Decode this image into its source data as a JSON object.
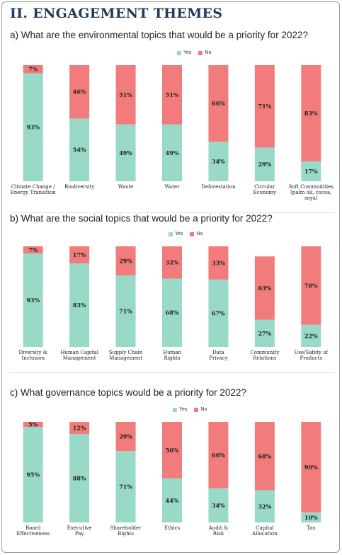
{
  "page": {
    "section_title": "II. ENGAGEMENT THEMES"
  },
  "legend": {
    "yes_label": "Yes",
    "no_label": "No"
  },
  "colors": {
    "yes": "#98d9c8",
    "no": "#f27b7b",
    "title": "#1f3b5b"
  },
  "chart_data": [
    {
      "type": "bar",
      "stacked": true,
      "title": "a) What are the environmental topics that would be a priority for 2022?",
      "categories": [
        "Climate Change /\nEnergy Transition",
        "Biodiversity",
        "Waste",
        "Water",
        "Deforestation",
        "Circular\nEconomy",
        "Soft Commodities\n(palm oil, cocoa,\nsoya)"
      ],
      "series": [
        {
          "name": "Yes",
          "values": [
            93,
            54,
            49,
            49,
            34,
            29,
            17
          ]
        },
        {
          "name": "No",
          "values": [
            7,
            46,
            51,
            51,
            66,
            71,
            83
          ]
        }
      ],
      "ylim": [
        0,
        100
      ],
      "value_suffix": "%",
      "legend_position": "top-center",
      "grid": false
    },
    {
      "type": "bar",
      "stacked": true,
      "title": "b) What are the social topics that would be a priority for 2022?",
      "categories": [
        "Diversity &\nInclusion",
        "Human Capital\nManagement",
        "Supply Chain\nManagement",
        "Human\nRights",
        "Data\nPrivacy",
        "Community\nRelations",
        "Use/Safety of\nProducts"
      ],
      "series": [
        {
          "name": "Yes",
          "values": [
            93,
            83,
            71,
            68,
            67,
            27,
            22
          ]
        },
        {
          "name": "No",
          "values": [
            7,
            17,
            29,
            32,
            33,
            63,
            78
          ]
        }
      ],
      "ylim": [
        0,
        100
      ],
      "value_suffix": "%",
      "legend_position": "top-center",
      "grid": false
    },
    {
      "type": "bar",
      "stacked": true,
      "title": "c) What governance topics would be a priority for 2022?",
      "categories": [
        "Board\nEffectiveness",
        "Executive\nPay",
        "Shareholder\nRights",
        "Ethics",
        "Audit &\nRisk",
        "Capital\nAllocation",
        "Tax"
      ],
      "series": [
        {
          "name": "Yes",
          "values": [
            95,
            88,
            71,
            44,
            34,
            32,
            10
          ]
        },
        {
          "name": "No",
          "values": [
            5,
            12,
            29,
            56,
            66,
            68,
            90
          ]
        }
      ],
      "ylim": [
        0,
        100
      ],
      "value_suffix": "%",
      "legend_position": "top-center",
      "grid": false
    }
  ]
}
